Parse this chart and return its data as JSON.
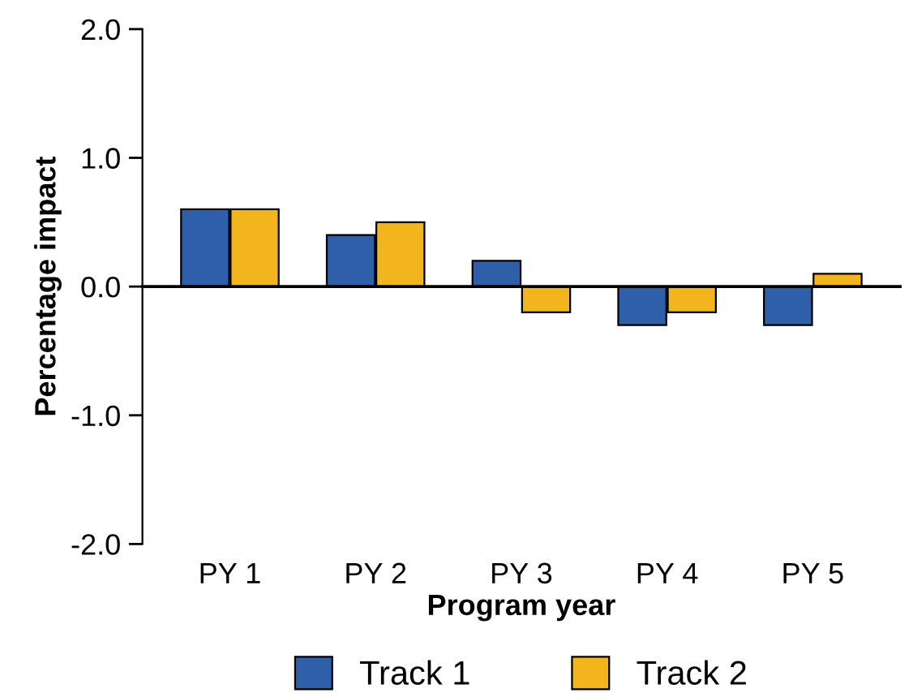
{
  "chart_data": {
    "type": "bar",
    "xlabel": "Program year",
    "ylabel": "Percentage impact",
    "categories": [
      "PY 1",
      "PY 2",
      "PY 3",
      "PY 4",
      "PY 5"
    ],
    "series": [
      {
        "name": "Track 1",
        "color": "#2e5fa8",
        "values": [
          0.6,
          0.4,
          0.2,
          -0.3,
          -0.3
        ]
      },
      {
        "name": "Track 2",
        "color": "#f2b51e",
        "values": [
          0.6,
          0.5,
          -0.2,
          -0.2,
          0.1
        ]
      }
    ],
    "ylim": [
      -2.0,
      2.0
    ],
    "yticks": [
      {
        "value": -2.0,
        "label": "-2.0"
      },
      {
        "value": -1.0,
        "label": "-1.0"
      },
      {
        "value": 0.0,
        "label": "0.0"
      },
      {
        "value": 1.0,
        "label": "1.0"
      },
      {
        "value": 2.0,
        "label": "2.0"
      }
    ],
    "legend": "bottom"
  }
}
